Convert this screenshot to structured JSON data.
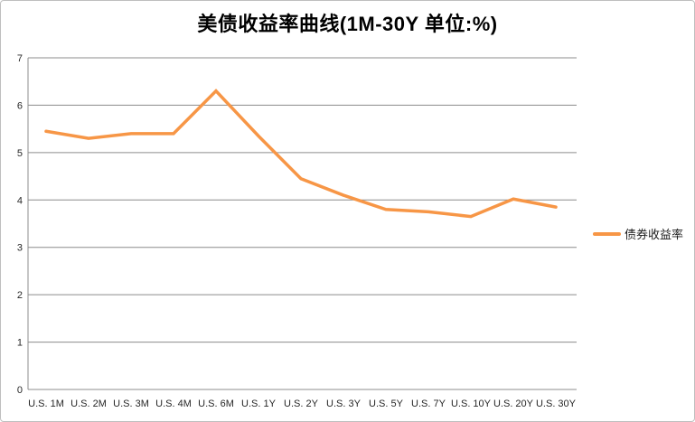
{
  "chart": {
    "title": "美债收益率曲线(1M-30Y 单位:%)",
    "legend_label": "债券收益率",
    "colors": {
      "series_line": "#F79646",
      "gridline": "#8C8C8C",
      "axis_line": "#8C8C8C",
      "tick_text": "#262626",
      "border": "#BFBFBF"
    }
  },
  "chart_data": {
    "type": "line",
    "title": "美债收益率曲线(1M-30Y 单位:%)",
    "categories": [
      "U.S. 1M",
      "U.S. 2M",
      "U.S. 3M",
      "U.S. 4M",
      "U.S. 6M",
      "U.S. 1Y",
      "U.S. 2Y",
      "U.S. 3Y",
      "U.S. 5Y",
      "U.S. 7Y",
      "U.S. 10Y",
      "U.S. 20Y",
      "U.S. 30Y"
    ],
    "series": [
      {
        "name": "债券收益率",
        "color": "#F79646",
        "values": [
          5.45,
          5.3,
          5.4,
          5.4,
          6.3,
          5.35,
          4.45,
          4.1,
          3.8,
          3.75,
          3.65,
          4.02,
          3.85
        ]
      }
    ],
    "ylim": [
      0,
      7
    ],
    "yticks": [
      0,
      1,
      2,
      3,
      4,
      5,
      6,
      7
    ],
    "xlabel": "",
    "ylabel": "",
    "grid": true,
    "legend_position": "right"
  }
}
